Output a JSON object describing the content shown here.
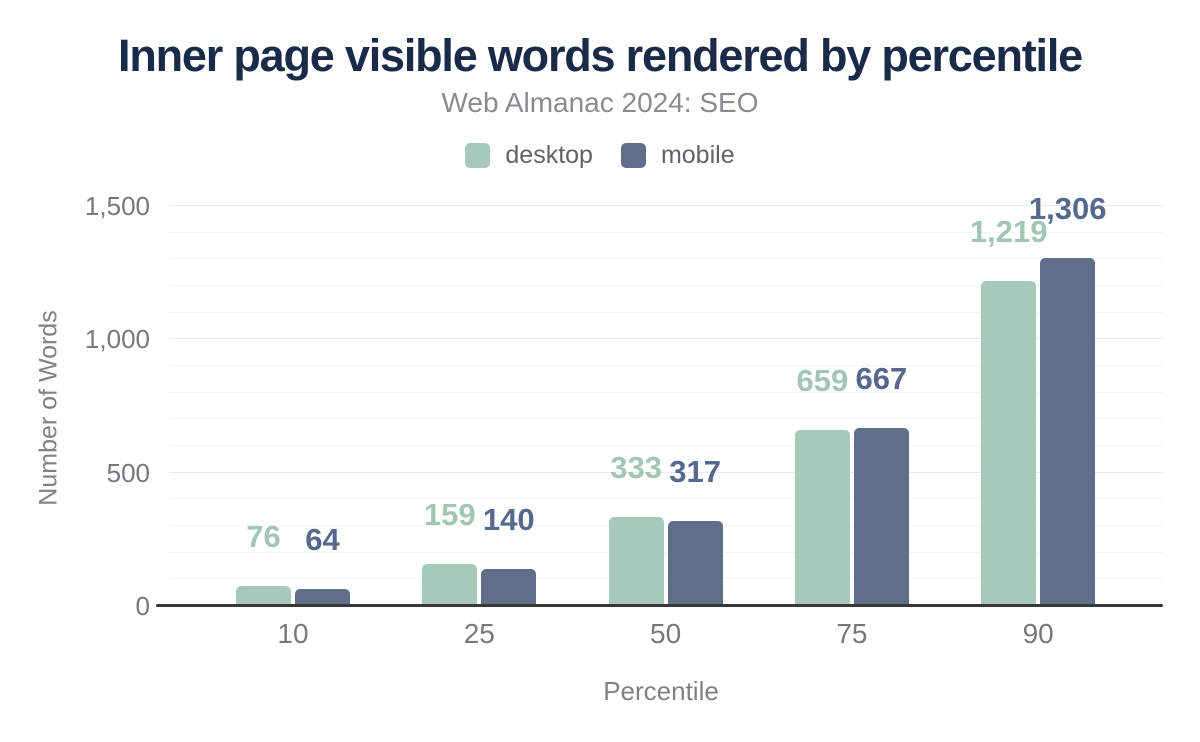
{
  "chart_data": {
    "type": "bar",
    "title": "Inner page visible words rendered by percentile",
    "subtitle": "Web Almanac 2024: SEO",
    "xlabel": "Percentile",
    "ylabel": "Number of Words",
    "categories": [
      "10",
      "25",
      "50",
      "75",
      "90"
    ],
    "series": [
      {
        "name": "desktop",
        "values": [
          76,
          159,
          333,
          659,
          1219
        ],
        "color": "#a7c9b9",
        "label_color": "#a2c6b3"
      },
      {
        "name": "mobile",
        "values": [
          64,
          140,
          317,
          667,
          1306
        ],
        "color": "#5f6e89",
        "label_color": "#56688d"
      }
    ],
    "ylim": [
      0,
      1500
    ],
    "yticks": [
      0,
      500,
      1000,
      1500
    ],
    "minor_grid_step": 100,
    "grid": true,
    "legend_position": "top",
    "colors": {
      "title": "#1a2b49",
      "subtitle": "#898b90",
      "axis_text": "#76787f",
      "axis_line": "#36383c",
      "grid_major": "#e8eaeb",
      "grid_minor": "#f4f4f5"
    }
  }
}
